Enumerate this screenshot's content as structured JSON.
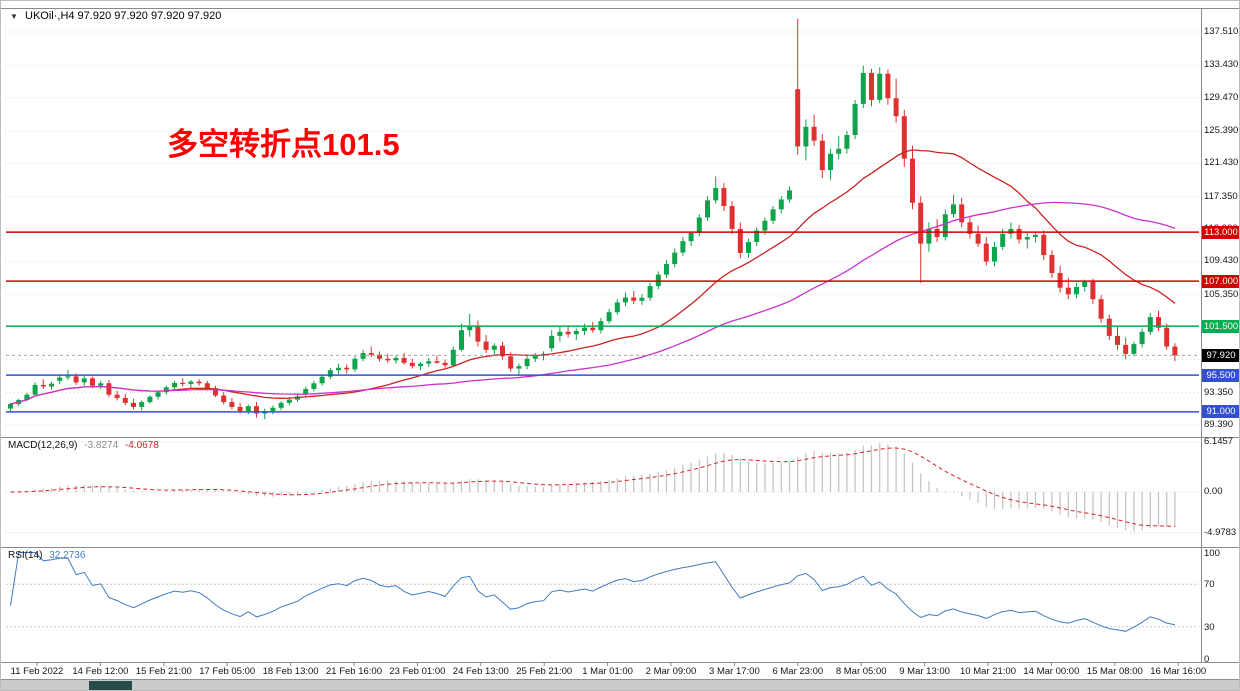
{
  "window": {
    "dropdown_icon": "▼",
    "title": "UKOil·,H4 97.920 97.920 97.920 97.920"
  },
  "annotation": {
    "text": "多空转折点101.5",
    "color": "#fe0000"
  },
  "colors": {
    "up_candle": "#0fa44c",
    "down_candle": "#e03030",
    "ma_fast": "#cc2222",
    "ma_slow": "#cc33cc",
    "macd_histogram": "#c2c2c2",
    "macd_signal": "#dd2222",
    "rsi_line": "#3f7cc0",
    "grid": "#d6d6d6",
    "frame": "#8a8a8a",
    "current_price_badge": "#000000"
  },
  "main_chart": {
    "price_axis_labels": [
      "137.510",
      "133.430",
      "129.470",
      "125.390",
      "121.430",
      "117.350",
      "113.390",
      "109.430",
      "105.350",
      "101.390",
      "97.430",
      "93.350",
      "89.390"
    ],
    "hlines": [
      {
        "price": 113.0,
        "label": "113.000",
        "color": "#d40000"
      },
      {
        "price": 107.0,
        "label": "107.000",
        "color": "#d40000"
      },
      {
        "price": 101.5,
        "label": "101.500",
        "color": "#00b050"
      },
      {
        "price": 95.5,
        "label": "95.500",
        "color": "#3350d0"
      },
      {
        "price": 91.0,
        "label": "91.000",
        "color": "#3350d0"
      }
    ],
    "current_price": {
      "value": 97.92,
      "label": "97.920"
    }
  },
  "macd_panel": {
    "name": "MACD(12,26,9)",
    "value_main": "-3.8274",
    "value_signal": "-4.0678",
    "axis_labels": [
      "6.1457",
      "0.00",
      "-4.9783"
    ],
    "fast": 12,
    "slow": 26,
    "signal": 9
  },
  "rsi_panel": {
    "name": "RSI(14)",
    "value": "32.2736",
    "axis_labels": [
      "100",
      "70",
      "30",
      "0"
    ],
    "period": 14,
    "levels": [
      70,
      30
    ]
  },
  "chart_data": {
    "type": "candlestick",
    "symbol": "UKOil",
    "timeframe": "H4",
    "price_range_shown": [
      89.39,
      137.51
    ],
    "x_labels": [
      "11 Feb 2022",
      "14 Feb 12:00",
      "15 Feb 21:00",
      "17 Feb 05:00",
      "18 Feb 13:00",
      "21 Feb 16:00",
      "23 Feb 01:00",
      "24 Feb 13:00",
      "25 Feb 21:00",
      "1 Mar 01:00",
      "2 Mar 09:00",
      "3 Mar 17:00",
      "6 Mar 23:00",
      "8 Mar 05:00",
      "9 Mar 13:00",
      "10 Mar 21:00",
      "14 Mar 00:00",
      "15 Mar 08:00",
      "16 Mar 16:00"
    ],
    "moving_averages": [
      {
        "type": "sma",
        "period": 20,
        "color": "#cc2222"
      },
      {
        "type": "sma",
        "period": 50,
        "color": "#cc33cc"
      }
    ],
    "ohlc": [
      [
        91.4,
        92.1,
        91.1,
        91.95
      ],
      [
        91.95,
        92.6,
        91.7,
        92.45
      ],
      [
        92.45,
        93.3,
        92.25,
        93.1
      ],
      [
        93.1,
        94.6,
        93.0,
        94.3
      ],
      [
        94.3,
        95.0,
        93.8,
        94.1
      ],
      [
        94.1,
        94.7,
        93.7,
        94.45
      ],
      [
        94.8,
        95.6,
        94.4,
        95.2
      ],
      [
        95.2,
        96.15,
        94.9,
        95.35
      ],
      [
        95.35,
        95.7,
        94.3,
        94.6
      ],
      [
        94.6,
        95.4,
        94.2,
        95.1
      ],
      [
        95.1,
        95.3,
        93.9,
        94.2
      ],
      [
        94.2,
        94.8,
        93.8,
        94.5
      ],
      [
        94.5,
        94.9,
        92.8,
        93.1
      ],
      [
        93.1,
        93.6,
        92.4,
        92.7
      ],
      [
        92.7,
        93.2,
        91.8,
        92.1
      ],
      [
        92.1,
        92.6,
        91.3,
        91.6
      ],
      [
        91.6,
        92.4,
        91.2,
        92.2
      ],
      [
        92.2,
        93.0,
        92.0,
        92.85
      ],
      [
        92.85,
        93.6,
        92.5,
        93.4
      ],
      [
        93.4,
        94.2,
        93.1,
        94.0
      ],
      [
        94.0,
        94.8,
        93.7,
        94.55
      ],
      [
        94.55,
        95.1,
        94.1,
        94.4
      ],
      [
        94.4,
        94.9,
        93.9,
        94.7
      ],
      [
        94.7,
        95.0,
        94.2,
        94.5
      ],
      [
        94.5,
        94.8,
        93.6,
        93.9
      ],
      [
        93.9,
        94.2,
        92.8,
        93.0
      ],
      [
        93.0,
        93.4,
        91.9,
        92.2
      ],
      [
        92.2,
        92.7,
        91.3,
        91.6
      ],
      [
        91.6,
        92.1,
        90.8,
        91.1
      ],
      [
        91.1,
        91.9,
        90.7,
        91.7
      ],
      [
        91.7,
        92.2,
        90.3,
        90.8
      ],
      [
        90.8,
        91.4,
        90.1,
        91.1
      ],
      [
        91.1,
        91.8,
        90.7,
        91.5
      ],
      [
        91.5,
        92.3,
        91.2,
        92.1
      ],
      [
        92.1,
        92.8,
        91.8,
        92.5
      ],
      [
        92.5,
        93.1,
        92.2,
        92.9
      ],
      [
        93.2,
        94.1,
        92.9,
        93.8
      ],
      [
        93.8,
        94.8,
        93.5,
        94.5
      ],
      [
        94.5,
        95.6,
        94.2,
        95.3
      ],
      [
        95.3,
        96.4,
        95.0,
        96.1
      ],
      [
        96.1,
        96.9,
        95.6,
        96.4
      ],
      [
        96.4,
        96.8,
        95.7,
        96.2
      ],
      [
        96.2,
        97.8,
        95.9,
        97.5
      ],
      [
        97.5,
        98.6,
        97.2,
        98.2
      ],
      [
        98.2,
        99.0,
        97.7,
        98.0
      ],
      [
        98.0,
        98.4,
        97.2,
        97.5
      ],
      [
        97.5,
        98.1,
        97.0,
        97.3
      ],
      [
        97.3,
        97.9,
        96.9,
        97.6
      ],
      [
        97.6,
        98.2,
        96.8,
        97.0
      ],
      [
        97.0,
        97.5,
        96.3,
        96.6
      ],
      [
        96.6,
        97.1,
        96.1,
        96.9
      ],
      [
        96.9,
        97.6,
        96.5,
        97.2
      ],
      [
        97.2,
        97.9,
        96.9,
        97.0
      ],
      [
        97.0,
        97.4,
        96.4,
        96.7
      ],
      [
        96.7,
        99.0,
        96.5,
        98.6
      ],
      [
        98.6,
        101.8,
        98.4,
        101.0
      ],
      [
        101.0,
        103.0,
        100.2,
        101.5
      ],
      [
        101.5,
        102.2,
        99.0,
        99.6
      ],
      [
        99.6,
        100.4,
        98.2,
        98.6
      ],
      [
        98.6,
        99.4,
        98.0,
        99.1
      ],
      [
        99.1,
        99.6,
        97.4,
        97.8
      ],
      [
        97.8,
        98.3,
        95.9,
        96.3
      ],
      [
        96.3,
        96.9,
        95.5,
        96.6
      ],
      [
        96.6,
        97.8,
        96.2,
        97.5
      ],
      [
        97.5,
        98.2,
        97.1,
        97.9
      ],
      [
        97.9,
        98.4,
        97.3,
        98.1
      ],
      [
        98.8,
        101.0,
        98.4,
        100.3
      ],
      [
        100.3,
        101.4,
        99.6,
        100.8
      ],
      [
        100.8,
        101.6,
        100.1,
        100.5
      ],
      [
        100.5,
        101.2,
        99.8,
        100.9
      ],
      [
        100.9,
        101.8,
        100.4,
        101.3
      ],
      [
        101.3,
        102.0,
        100.7,
        101.0
      ],
      [
        101.0,
        102.5,
        100.6,
        102.1
      ],
      [
        102.1,
        103.6,
        101.8,
        103.2
      ],
      [
        103.2,
        104.8,
        102.9,
        104.4
      ],
      [
        104.4,
        105.6,
        103.9,
        105.0
      ],
      [
        105.0,
        105.8,
        104.2,
        104.6
      ],
      [
        104.6,
        105.4,
        104.1,
        104.97
      ],
      [
        104.97,
        106.8,
        104.6,
        106.4
      ],
      [
        106.4,
        108.2,
        106.0,
        107.8
      ],
      [
        107.8,
        109.6,
        107.4,
        109.1
      ],
      [
        109.1,
        111.0,
        108.7,
        110.5
      ],
      [
        110.5,
        112.4,
        110.1,
        111.9
      ],
      [
        111.9,
        113.1,
        111.3,
        112.9
      ],
      [
        112.9,
        115.2,
        112.5,
        114.8
      ],
      [
        114.8,
        117.4,
        114.4,
        116.9
      ],
      [
        116.9,
        119.84,
        116.5,
        118.4
      ],
      [
        118.4,
        119.0,
        115.6,
        116.2
      ],
      [
        116.2,
        116.8,
        112.8,
        113.4
      ],
      [
        113.4,
        114.2,
        109.8,
        110.46
      ],
      [
        110.46,
        112.2,
        109.9,
        111.8
      ],
      [
        111.8,
        113.6,
        111.3,
        113.2
      ],
      [
        113.2,
        114.8,
        112.7,
        114.4
      ],
      [
        114.4,
        116.2,
        114.0,
        115.8
      ],
      [
        115.8,
        117.4,
        115.3,
        117.0
      ],
      [
        117.0,
        118.6,
        116.6,
        118.11
      ],
      [
        130.5,
        139.13,
        122.5,
        123.5
      ],
      [
        123.5,
        126.8,
        121.8,
        125.9
      ],
      [
        125.9,
        127.4,
        123.6,
        124.2
      ],
      [
        124.2,
        125.0,
        119.6,
        120.6
      ],
      [
        120.6,
        123.2,
        119.4,
        122.6
      ],
      [
        122.6,
        124.8,
        121.9,
        123.21
      ],
      [
        123.21,
        125.4,
        122.6,
        124.9
      ],
      [
        124.9,
        129.2,
        124.4,
        128.7
      ],
      [
        128.7,
        133.4,
        128.2,
        132.5
      ],
      [
        132.5,
        133.0,
        128.4,
        129.2
      ],
      [
        129.2,
        133.2,
        128.8,
        132.4
      ],
      [
        132.4,
        132.9,
        128.6,
        129.4
      ],
      [
        129.4,
        131.8,
        126.4,
        127.2
      ],
      [
        127.2,
        128.0,
        121.0,
        122.0
      ],
      [
        122.0,
        123.6,
        115.8,
        116.6
      ],
      [
        116.6,
        117.4,
        106.8,
        111.6
      ],
      [
        111.6,
        114.2,
        110.6,
        113.4
      ],
      [
        113.4,
        114.6,
        111.8,
        112.4
      ],
      [
        112.4,
        115.8,
        112.0,
        115.2
      ],
      [
        115.2,
        117.6,
        114.8,
        116.4
      ],
      [
        116.4,
        117.2,
        113.6,
        114.2
      ],
      [
        114.2,
        115.0,
        112.2,
        112.8
      ],
      [
        112.8,
        113.8,
        111.2,
        111.6
      ],
      [
        111.6,
        112.4,
        108.9,
        109.4
      ],
      [
        109.4,
        111.8,
        108.8,
        111.2
      ],
      [
        111.2,
        113.4,
        110.8,
        112.8
      ],
      [
        112.8,
        114.2,
        112.2,
        113.4
      ],
      [
        113.4,
        113.9,
        111.6,
        112.1
      ],
      [
        112.1,
        112.9,
        111.0,
        112.4
      ],
      [
        112.4,
        113.1,
        111.7,
        112.67
      ],
      [
        112.67,
        113.2,
        109.6,
        110.2
      ],
      [
        110.2,
        110.8,
        107.4,
        108.0
      ],
      [
        108.0,
        108.9,
        105.6,
        106.2
      ],
      [
        106.2,
        107.4,
        104.8,
        105.4
      ],
      [
        105.4,
        106.8,
        104.9,
        106.3
      ],
      [
        106.3,
        107.2,
        105.7,
        106.9
      ],
      [
        106.9,
        107.3,
        104.2,
        104.8
      ],
      [
        104.8,
        105.3,
        101.9,
        102.4
      ],
      [
        102.4,
        102.9,
        99.8,
        100.3
      ],
      [
        100.3,
        101.4,
        98.6,
        99.2
      ],
      [
        99.2,
        100.1,
        97.44,
        98.1
      ],
      [
        98.1,
        99.6,
        97.8,
        99.3
      ],
      [
        99.3,
        101.2,
        98.9,
        100.8
      ],
      [
        100.8,
        103.1,
        100.4,
        102.6
      ],
      [
        102.6,
        103.4,
        100.9,
        101.3
      ],
      [
        101.3,
        101.8,
        98.6,
        99.0
      ],
      [
        99.0,
        99.4,
        97.2,
        97.92
      ]
    ]
  }
}
